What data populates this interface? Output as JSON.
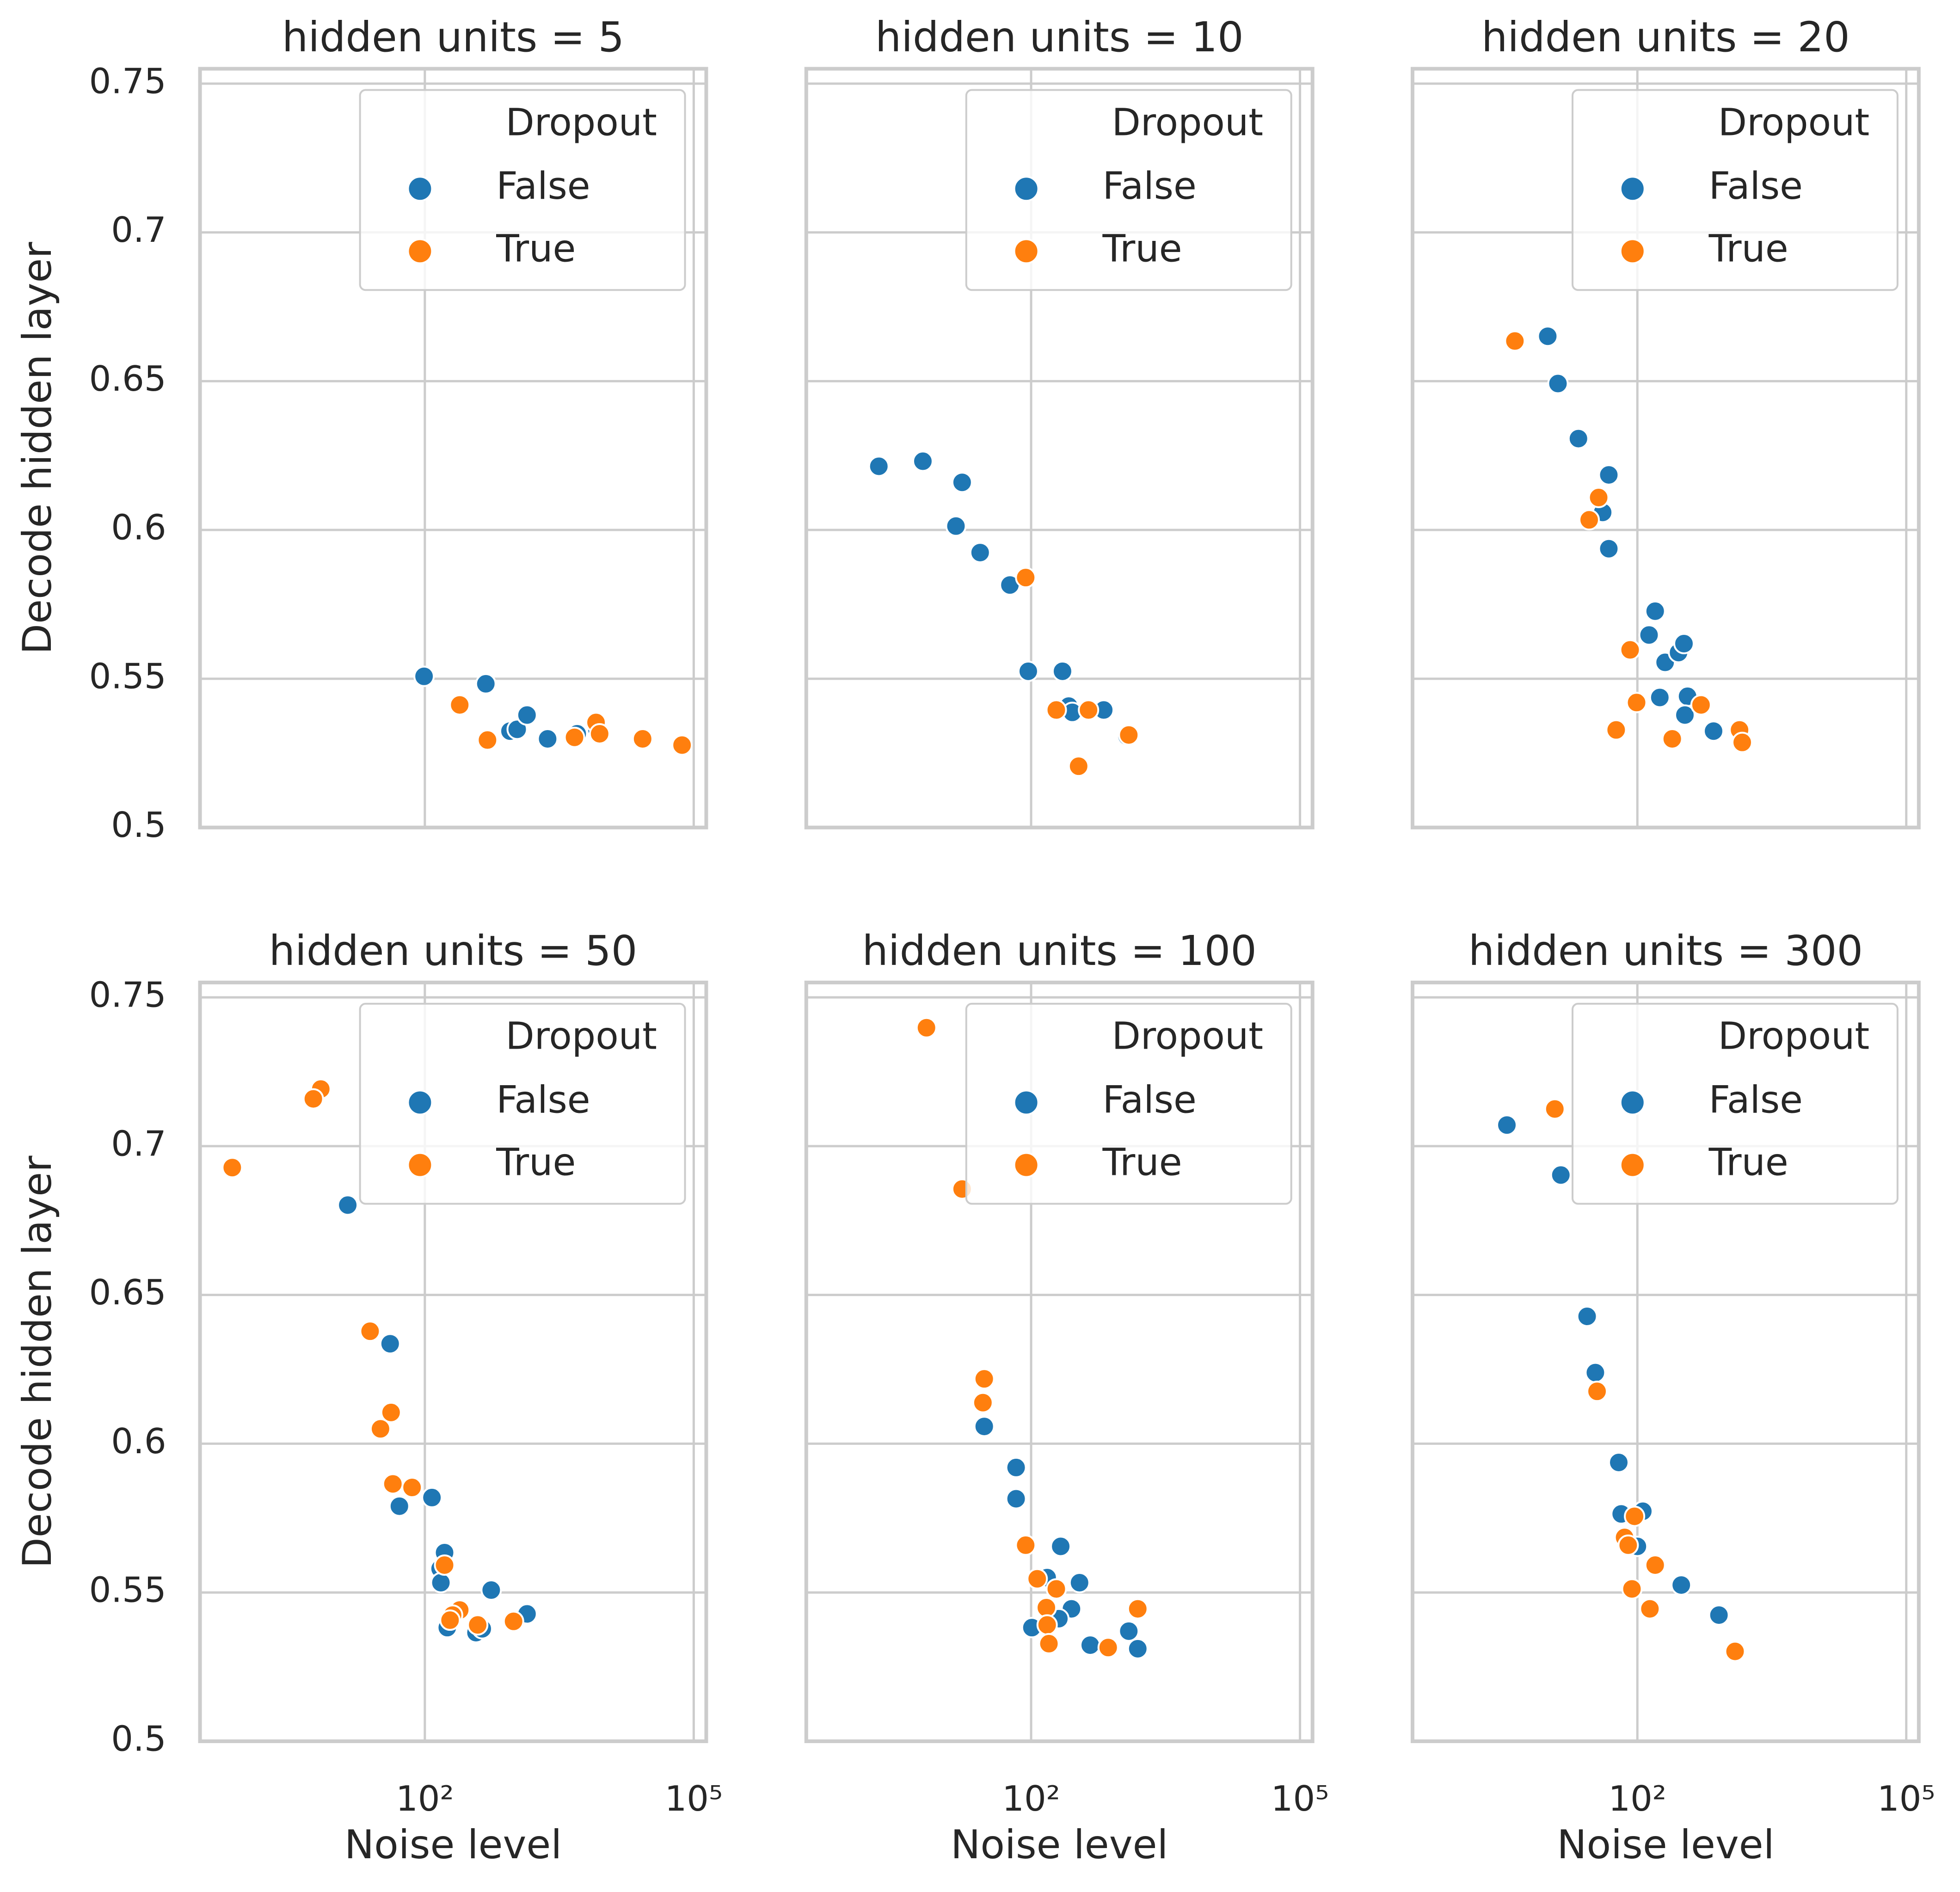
{
  "chart_data": [
    {
      "type": "scatter",
      "title": "hidden units = 5",
      "ylabel": "Decode hidden layer",
      "xlog": true,
      "grid": true,
      "xtick_labels": false,
      "ytick_labels": true,
      "legend_title": "Dropout",
      "legend_loc": "upper right",
      "xlim": [
        0.31,
        138000
      ],
      "ylim": [
        0.5,
        0.755
      ],
      "xticks": [
        {
          "value": 100,
          "label": "10²"
        },
        {
          "value": 100000,
          "label": "10⁵"
        }
      ],
      "yticks": [
        0.5,
        0.55,
        0.6,
        0.65,
        0.7,
        0.75
      ],
      "series": [
        {
          "name": "False",
          "color": "#1f77b4",
          "x": [
            98,
            479,
            891,
            1072,
            1380,
            2344,
            5012,
            8318
          ],
          "values": [
            0.5508,
            0.5483,
            0.5324,
            0.533,
            0.5378,
            0.5298,
            0.5315,
            0.533
          ]
        },
        {
          "name": "True",
          "color": "#ff7f0e",
          "x": [
            245,
            500,
            4677,
            8128,
            8913,
            26900,
            74100
          ],
          "values": [
            0.5412,
            0.5294,
            0.5303,
            0.5353,
            0.5315,
            0.5298,
            0.5277
          ]
        }
      ]
    },
    {
      "type": "scatter",
      "title": "hidden units = 10",
      "xlog": true,
      "grid": true,
      "xtick_labels": false,
      "ytick_labels": false,
      "legend_title": "Dropout",
      "legend_loc": "upper right",
      "xlim": [
        0.31,
        138000
      ],
      "ylim": [
        0.5,
        0.755
      ],
      "xticks": [
        {
          "value": 100,
          "label": "10²"
        },
        {
          "value": 100000,
          "label": "10⁵"
        }
      ],
      "yticks": [
        0.5,
        0.55,
        0.6,
        0.65,
        0.7,
        0.75
      ],
      "series": [
        {
          "name": "False",
          "color": "#1f77b4",
          "x": [
            2.0,
            6.2,
            17,
            14.5,
            27,
            58,
            93,
            224,
            263,
            288,
            646,
            1175
          ],
          "values": [
            0.6214,
            0.6231,
            0.616,
            0.6013,
            0.5924,
            0.5815,
            0.5525,
            0.5525,
            0.5408,
            0.5387,
            0.5395,
            0.5307
          ]
        },
        {
          "name": "True",
          "color": "#ff7f0e",
          "x": [
            87,
            191,
            437,
            339,
            1230
          ],
          "values": [
            0.584,
            0.5395,
            0.5395,
            0.5206,
            0.5311
          ]
        }
      ]
    },
    {
      "type": "scatter",
      "title": "hidden units = 20",
      "xlog": true,
      "grid": true,
      "xtick_labels": false,
      "ytick_labels": false,
      "legend_title": "Dropout",
      "legend_loc": "upper right",
      "xlim": [
        0.31,
        138000
      ],
      "ylim": [
        0.5,
        0.755
      ],
      "xticks": [
        {
          "value": 100,
          "label": "10²"
        },
        {
          "value": 100000,
          "label": "10⁵"
        }
      ],
      "yticks": [
        0.5,
        0.55,
        0.6,
        0.65,
        0.7,
        0.75
      ],
      "series": [
        {
          "name": "False",
          "color": "#1f77b4",
          "x": [
            10,
            13,
            22,
            48,
            41,
            48,
            158,
            135,
            204,
            288,
            331,
            178,
            363,
            339,
            708
          ],
          "values": [
            0.6651,
            0.6492,
            0.6307,
            0.6185,
            0.6059,
            0.5937,
            0.5727,
            0.5647,
            0.5555,
            0.5588,
            0.5618,
            0.5437,
            0.5441,
            0.5378,
            0.5324
          ]
        },
        {
          "name": "True",
          "color": "#ff7f0e",
          "x": [
            4.3,
            37,
            29,
            83,
            98,
            58,
            245,
            513,
            1380,
            1479
          ],
          "values": [
            0.6635,
            0.6109,
            0.6034,
            0.5597,
            0.542,
            0.5328,
            0.5298,
            0.5412,
            0.5328,
            0.5286
          ]
        }
      ]
    },
    {
      "type": "scatter",
      "title": "hidden units = 50",
      "xlabel": "Noise level",
      "ylabel": "Decode hidden layer",
      "xlog": true,
      "grid": true,
      "xtick_labels": true,
      "ytick_labels": true,
      "legend_title": "Dropout",
      "legend_loc": "upper right",
      "xlim": [
        0.31,
        138000
      ],
      "ylim": [
        0.5,
        0.755
      ],
      "xticks": [
        {
          "value": 100,
          "label": "10²"
        },
        {
          "value": 100000,
          "label": "10⁵"
        }
      ],
      "yticks": [
        0.5,
        0.55,
        0.6,
        0.65,
        0.7,
        0.75
      ],
      "series": [
        {
          "name": "False",
          "color": "#1f77b4",
          "x": [
            13.8,
            41,
            52,
            120,
            166,
            148,
            151,
            550,
            1380,
            178,
            372,
            437
          ],
          "values": [
            0.6802,
            0.6336,
            0.579,
            0.5819,
            0.5634,
            0.558,
            0.5533,
            0.5508,
            0.5428,
            0.5382,
            0.5365,
            0.5378
          ]
        },
        {
          "name": "True",
          "color": "#ff7f0e",
          "x": [
            0.71,
            6.9,
            5.7,
            24.5,
            32,
            42,
            44,
            72,
            166,
            245,
            204,
            191,
            389,
            977
          ],
          "values": [
            0.6928,
            0.7192,
            0.7159,
            0.6378,
            0.605,
            0.6105,
            0.5865,
            0.5853,
            0.5592,
            0.5441,
            0.5424,
            0.5407,
            0.5391,
            0.5403
          ]
        }
      ]
    },
    {
      "type": "scatter",
      "title": "hidden units = 100",
      "xlabel": "Noise level",
      "xlog": true,
      "grid": true,
      "xtick_labels": true,
      "ytick_labels": false,
      "legend_title": "Dropout",
      "legend_loc": "upper right",
      "xlim": [
        0.31,
        138000
      ],
      "ylim": [
        0.5,
        0.755
      ],
      "xticks": [
        {
          "value": 100,
          "label": "10²"
        },
        {
          "value": 100000,
          "label": "10⁵"
        }
      ],
      "yticks": [
        0.5,
        0.55,
        0.6,
        0.65,
        0.7,
        0.75
      ],
      "series": [
        {
          "name": "False",
          "color": "#1f77b4",
          "x": [
            30,
            68,
            68,
            214,
            151,
            347,
            282,
            204,
            102,
            457,
            1230,
            1549
          ],
          "values": [
            0.6058,
            0.592,
            0.5815,
            0.5655,
            0.555,
            0.5533,
            0.5445,
            0.5412,
            0.5382,
            0.5323,
            0.537,
            0.5311
          ]
        },
        {
          "name": "True",
          "color": "#ff7f0e",
          "x": [
            6.8,
            17,
            30,
            29,
            87,
            117,
            191,
            148,
            151,
            158,
            724,
            1549
          ],
          "values": [
            0.7398,
            0.6856,
            0.6218,
            0.6138,
            0.5659,
            0.5546,
            0.5512,
            0.5449,
            0.5391,
            0.5328,
            0.5315,
            0.5445
          ]
        }
      ]
    },
    {
      "type": "scatter",
      "title": "hidden units = 300",
      "xlabel": "Noise level",
      "xlog": true,
      "grid": true,
      "xtick_labels": true,
      "ytick_labels": false,
      "legend_title": "Dropout",
      "legend_loc": "upper right",
      "xlim": [
        0.31,
        138000
      ],
      "ylim": [
        0.5,
        0.755
      ],
      "xticks": [
        {
          "value": 100,
          "label": "10²"
        },
        {
          "value": 100000,
          "label": "10⁵"
        }
      ],
      "yticks": [
        0.5,
        0.55,
        0.6,
        0.65,
        0.7,
        0.75
      ],
      "series": [
        {
          "name": "False",
          "color": "#1f77b4",
          "x": [
            3.5,
            14,
            27.5,
            34,
            62,
            66,
            115,
            100,
            309,
            813
          ],
          "values": [
            0.7071,
            0.6903,
            0.6428,
            0.6239,
            0.5937,
            0.5764,
            0.5773,
            0.5655,
            0.5525,
            0.5424
          ]
        },
        {
          "name": "True",
          "color": "#ff7f0e",
          "x": [
            12,
            35.5,
            93,
            72,
            79,
            87,
            158,
            138,
            1230
          ],
          "values": [
            0.7125,
            0.6176,
            0.5756,
            0.5685,
            0.5659,
            0.5512,
            0.5592,
            0.5445,
            0.5302
          ]
        }
      ]
    }
  ]
}
